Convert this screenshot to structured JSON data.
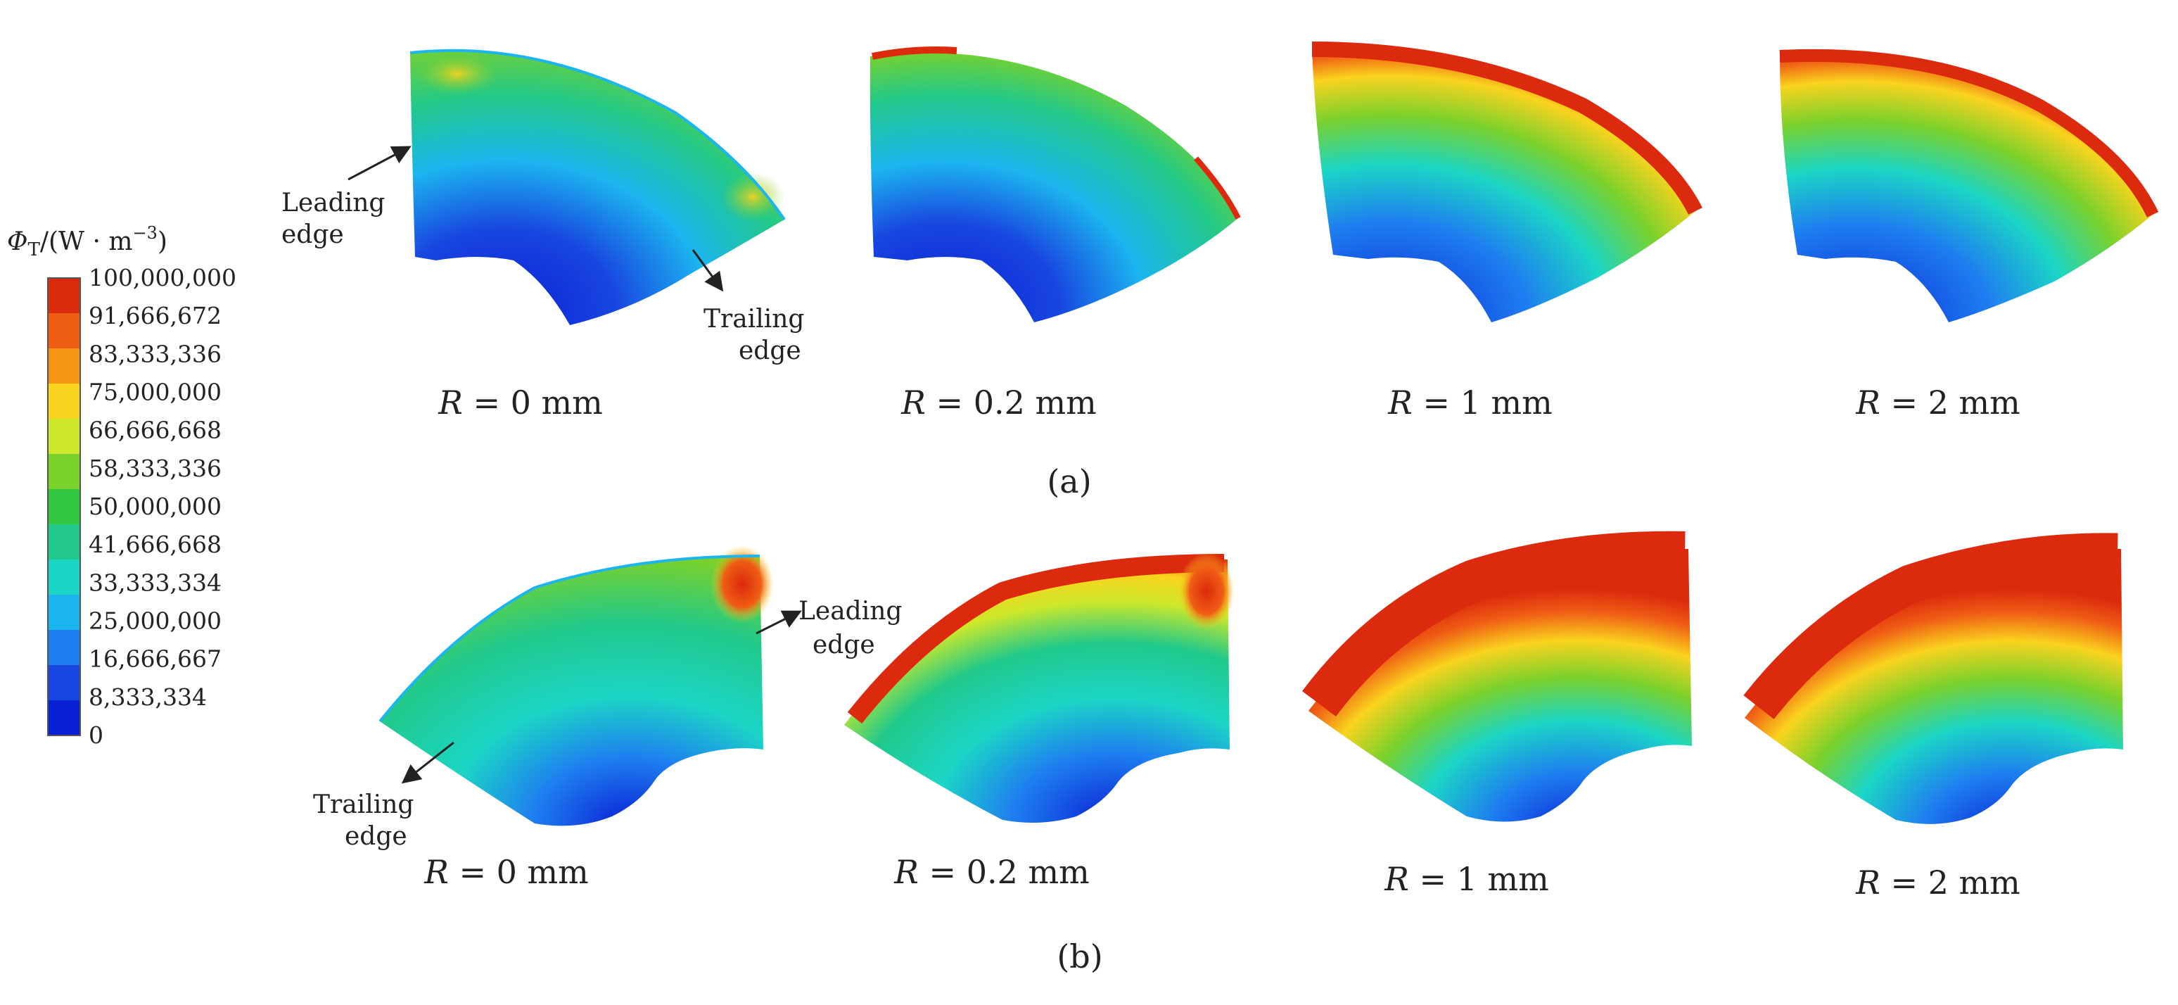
{
  "legend": {
    "title_symbol": "Φ",
    "title_subscript": "T",
    "title_units_open": "/(W · m",
    "title_units_sup": "−3",
    "title_units_close": ")",
    "ticks": [
      "100,000,000",
      "91,666,672",
      "83,333,336",
      "75,000,000",
      "66,666,668",
      "58,333,336",
      "50,000,000",
      "41,666,668",
      "33,333,334",
      "25,000,000",
      "16,666,667",
      "8,333,334",
      "0"
    ],
    "colors": [
      "#dc2a0e",
      "#ef5d14",
      "#f59516",
      "#fad31e",
      "#cde82a",
      "#7ad12c",
      "#34c740",
      "#21c98a",
      "#1bd6c5",
      "#1cb5ee",
      "#1e7ef0",
      "#1846e0",
      "#0a20d4"
    ]
  },
  "panels": [
    {
      "label": "(a)",
      "cases": [
        "R = 0 mm",
        "R = 0.2 mm",
        "R = 1 mm",
        "R = 2 mm"
      ],
      "annotations": {
        "leading": [
          "Leading",
          "edge"
        ],
        "trailing": [
          "Trailing",
          "edge"
        ]
      }
    },
    {
      "label": "(b)",
      "cases": [
        "R = 0 mm",
        "R = 0.2 mm",
        "R = 1 mm",
        "R = 2 mm"
      ],
      "annotations": {
        "leading": [
          "Leading",
          "edge"
        ],
        "trailing": [
          "Trailing",
          "edge"
        ]
      }
    }
  ]
}
